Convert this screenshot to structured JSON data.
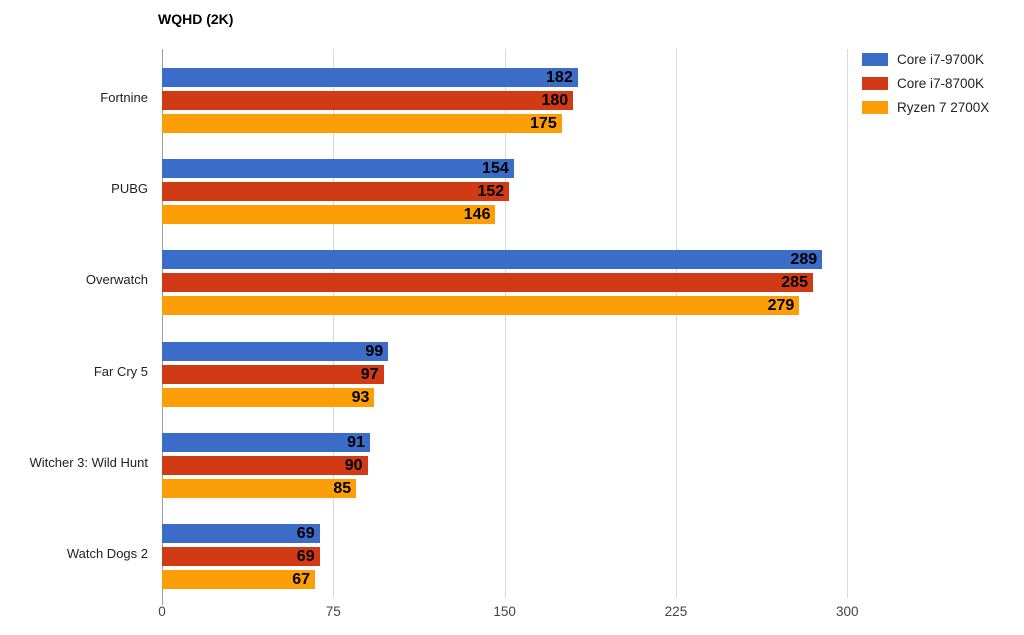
{
  "chart": {
    "title": "WQHD (2K)"
  },
  "chart_data": {
    "type": "bar",
    "orientation": "horizontal",
    "title": "WQHD (2K)",
    "categories": [
      "Fortnine",
      "PUBG",
      "Overwatch",
      "Far Cry 5",
      "Witcher 3: Wild Hunt",
      "Watch Dogs 2"
    ],
    "series": [
      {
        "name": "Core i7-9700K",
        "color": "#3b6cc8",
        "values": [
          182,
          154,
          289,
          99,
          91,
          69
        ]
      },
      {
        "name": "Core i7-8700K",
        "color": "#d03b15",
        "values": [
          180,
          152,
          285,
          97,
          90,
          69
        ]
      },
      {
        "name": "Ryzen 7 2700X",
        "color": "#fc9e08",
        "values": [
          175,
          146,
          279,
          93,
          85,
          67
        ]
      }
    ],
    "xlabel": "",
    "ylabel": "",
    "x_ticks": [
      0,
      75,
      150,
      225,
      300
    ],
    "xlim": [
      0,
      373
    ],
    "grid": true,
    "legend_position": "top-right",
    "value_labels": "inside-end"
  },
  "colors": {
    "background": "#ffffff",
    "gridline": "#d9d9d9",
    "axis_line": "#9e9e9e",
    "title_text": "#000000",
    "category_text": "#222222",
    "tick_text": "#444444",
    "value_text": "#000000"
  }
}
